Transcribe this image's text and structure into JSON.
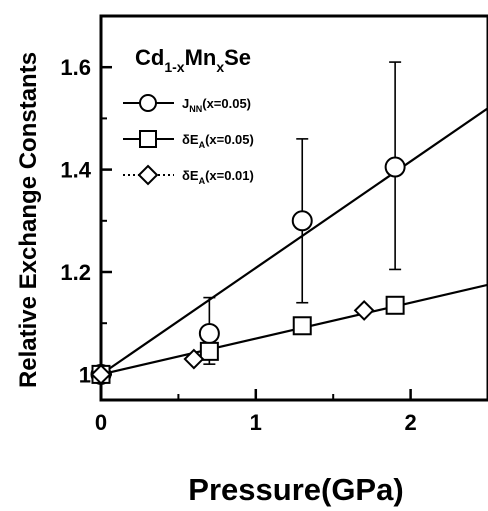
{
  "chart_data": {
    "type": "scatter",
    "title": "",
    "xlabel": "Pressure(GPa)",
    "ylabel": "Relative Exchange Constants",
    "xlim": [
      0,
      2.5
    ],
    "ylim": [
      0.95,
      1.7
    ],
    "x_ticks": [
      "0",
      "1",
      "2"
    ],
    "y_ticks": [
      "1",
      "1.2",
      "1.4",
      "1.6"
    ],
    "annotation": {
      "base": "Cd",
      "sub1": "1-x",
      "mid": "Mn",
      "sub2": "x",
      "end": "Se"
    },
    "legend_position": "top-left",
    "series": [
      {
        "name": "J_NN(x=0.05)",
        "label_prefix": "J",
        "label_sub": "NN",
        "label_suffix": "(x=0.05)",
        "marker": "circle",
        "line": "solid",
        "points": [
          {
            "x": 0,
            "y": 1.0
          },
          {
            "x": 0.7,
            "y": 1.08,
            "err_low": 1.02,
            "err_high": 1.15
          },
          {
            "x": 1.3,
            "y": 1.3,
            "err_low": 1.14,
            "err_high": 1.46
          },
          {
            "x": 1.9,
            "y": 1.405,
            "err_low": 1.205,
            "err_high": 1.61
          }
        ],
        "fit": [
          [
            0,
            1.0
          ],
          [
            2.5,
            1.52
          ]
        ]
      },
      {
        "name": "δE_A(x=0.05)",
        "label_prefix": "δE",
        "label_sub": "A",
        "label_suffix": "(x=0.05)",
        "marker": "square",
        "line": "solid",
        "points": [
          {
            "x": 0,
            "y": 1.0
          },
          {
            "x": 0.7,
            "y": 1.045
          },
          {
            "x": 1.3,
            "y": 1.095
          },
          {
            "x": 1.9,
            "y": 1.135
          }
        ],
        "fit": [
          [
            0,
            1.0
          ],
          [
            2.5,
            1.175
          ]
        ]
      },
      {
        "name": "δE_A(x=0.01)",
        "label_prefix": "δE",
        "label_sub": "A",
        "label_suffix": "(x=0.01)",
        "marker": "diamond",
        "line": "dotted",
        "points": [
          {
            "x": 0,
            "y": 1.0
          },
          {
            "x": 0.6,
            "y": 1.03
          },
          {
            "x": 1.7,
            "y": 1.125
          }
        ]
      }
    ]
  }
}
